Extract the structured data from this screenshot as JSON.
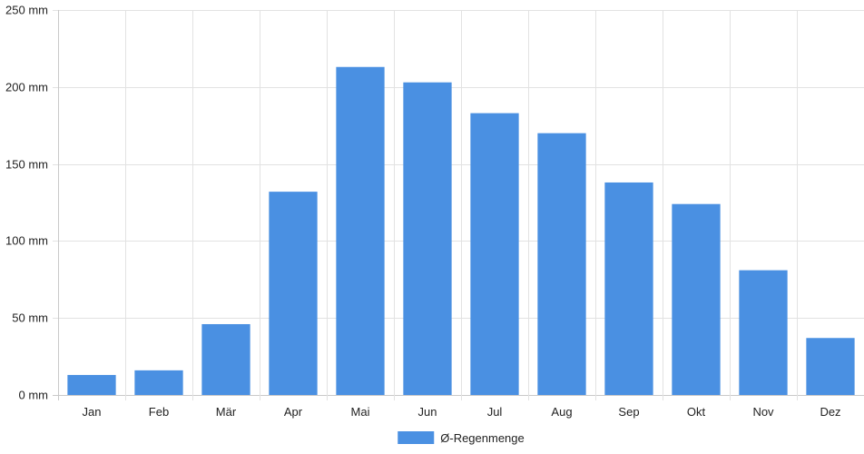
{
  "chart_data": {
    "type": "bar",
    "categories": [
      "Jan",
      "Feb",
      "Mär",
      "Apr",
      "Mai",
      "Jun",
      "Jul",
      "Aug",
      "Sep",
      "Okt",
      "Nov",
      "Dez"
    ],
    "series": [
      {
        "name": "Ø-Regenmenge",
        "color": "#4a90e2",
        "values": [
          13,
          16,
          46,
          132,
          213,
          203,
          183,
          170,
          138,
          124,
          81,
          37
        ]
      }
    ],
    "ylim": [
      0,
      250
    ],
    "yticks": [
      0,
      50,
      100,
      150,
      200,
      250
    ],
    "y_unit": " mm",
    "grid": true,
    "legend": "bottom-center",
    "title": "",
    "xlabel": "",
    "ylabel": ""
  }
}
